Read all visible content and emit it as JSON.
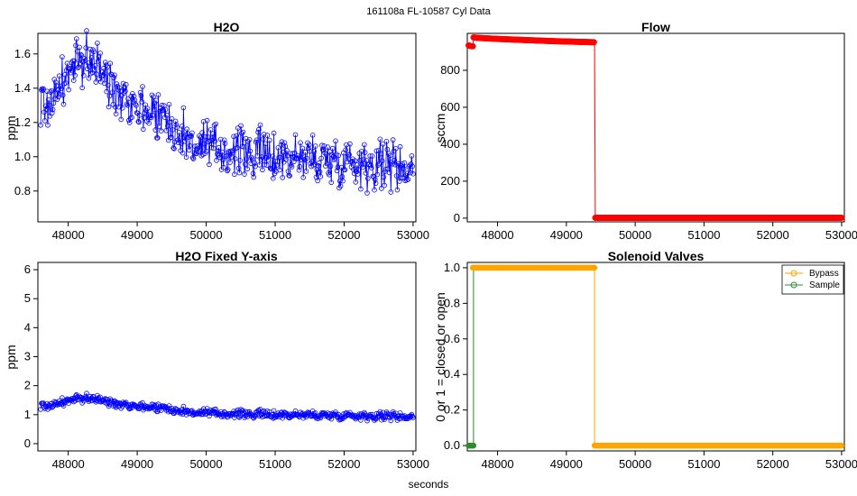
{
  "figure": {
    "suptitle": "161108a   FL-10587  Cyl Data",
    "xlabel": "seconds"
  },
  "colors": {
    "h2o": "#0000ff",
    "flow": "#ff0000",
    "bypass": "#ffa500",
    "sample": "#2e8b2e"
  },
  "chart_data": [
    {
      "type": "line",
      "title": "H2O",
      "ylabel": "ppm",
      "xlim": [
        47560,
        53040
      ],
      "ylim": [
        0.62,
        1.72
      ],
      "xticks": [
        48000,
        49000,
        50000,
        51000,
        52000,
        53000
      ],
      "yticks": [
        0.8,
        1.0,
        1.2,
        1.4,
        1.6
      ],
      "ytick_labels": [
        "0.8",
        "1.0",
        "1.2",
        "1.4",
        "1.6"
      ],
      "marker": "open-circle",
      "series": [
        {
          "x": [
            47600,
            47700,
            47800,
            47900,
            48000,
            48100,
            48200,
            48300,
            48400,
            48500,
            48600,
            48700,
            48800,
            48900,
            49000,
            49100,
            49200,
            49300,
            49400,
            49500,
            49600,
            49700,
            49800,
            49900,
            50000,
            50200,
            50400,
            50600,
            50800,
            51000,
            51200,
            51400,
            51600,
            51800,
            52000,
            52200,
            52400,
            52600,
            52800,
            53000
          ],
          "y": [
            1.32,
            1.3,
            1.36,
            1.42,
            1.48,
            1.52,
            1.56,
            1.58,
            1.54,
            1.48,
            1.42,
            1.4,
            1.38,
            1.34,
            1.3,
            1.28,
            1.27,
            1.26,
            1.23,
            1.18,
            1.14,
            1.1,
            1.08,
            1.06,
            1.05,
            1.04,
            1.03,
            1.02,
            1.01,
            1.0,
            1.0,
            0.99,
            0.99,
            0.98,
            0.98,
            0.97,
            0.96,
            0.96,
            0.95,
            0.93
          ],
          "noise": 0.09
        }
      ]
    },
    {
      "type": "line",
      "title": "Flow",
      "ylabel": "sccm",
      "xlim": [
        47560,
        53040
      ],
      "ylim": [
        -20,
        1000
      ],
      "xticks": [
        48000,
        49000,
        50000,
        51000,
        52000,
        53000
      ],
      "yticks": [
        0,
        200,
        400,
        600,
        800
      ],
      "ytick_labels": [
        "0",
        "200",
        "400",
        "600",
        "800"
      ],
      "marker": "filled-circle",
      "series": [
        {
          "segments": [
            {
              "x": [
                47580,
                47600,
                47640
              ],
              "y": [
                935,
                932,
                930
              ]
            },
            {
              "x": [
                47650,
                47700,
                48000,
                48400,
                48800,
                49200,
                49400
              ],
              "y": [
                978,
                976,
                970,
                964,
                958,
                954,
                952
              ]
            },
            {
              "x": [
                49410,
                49420,
                53000
              ],
              "y": [
                950,
                2,
                2
              ]
            }
          ]
        }
      ]
    },
    {
      "type": "line",
      "title": "H2O Fixed Y-axis",
      "ylabel": "ppm",
      "xlim": [
        47560,
        53040
      ],
      "ylim": [
        -0.25,
        6.25
      ],
      "xticks": [
        48000,
        49000,
        50000,
        51000,
        52000,
        53000
      ],
      "yticks": [
        0,
        1,
        2,
        3,
        4,
        5,
        6
      ],
      "ytick_labels": [
        "0",
        "1",
        "2",
        "3",
        "4",
        "5",
        "6"
      ],
      "marker": "open-circle",
      "series": [
        {
          "x": [
            47600,
            47700,
            47800,
            47900,
            48000,
            48100,
            48200,
            48300,
            48400,
            48500,
            48600,
            48700,
            48800,
            48900,
            49000,
            49100,
            49200,
            49300,
            49400,
            49500,
            49600,
            49700,
            49800,
            49900,
            50000,
            50200,
            50400,
            50600,
            50800,
            51000,
            51200,
            51400,
            51600,
            51800,
            52000,
            52200,
            52400,
            52600,
            52800,
            53000
          ],
          "y": [
            1.32,
            1.3,
            1.36,
            1.42,
            1.48,
            1.52,
            1.56,
            1.58,
            1.54,
            1.48,
            1.42,
            1.4,
            1.38,
            1.34,
            1.3,
            1.28,
            1.27,
            1.26,
            1.23,
            1.18,
            1.14,
            1.1,
            1.08,
            1.06,
            1.05,
            1.04,
            1.03,
            1.02,
            1.01,
            1.0,
            1.0,
            0.99,
            0.99,
            0.98,
            0.98,
            0.97,
            0.96,
            0.96,
            0.95,
            0.93
          ],
          "noise": 0.09
        }
      ]
    },
    {
      "type": "line",
      "title": "Solenoid Valves",
      "ylabel": "0 or 1 = closed or open",
      "xlim": [
        47560,
        53040
      ],
      "ylim": [
        -0.03,
        1.03
      ],
      "xticks": [
        48000,
        49000,
        50000,
        51000,
        52000,
        53000
      ],
      "yticks": [
        0,
        0.2,
        0.4,
        0.6,
        0.8,
        1.0
      ],
      "ytick_labels": [
        "0.0",
        "0.2",
        "0.4",
        "0.6",
        "0.8",
        "1.0"
      ],
      "marker": "filled-circle",
      "legend": {
        "position": "top-right",
        "entries": [
          "Bypass",
          "Sample"
        ]
      },
      "series": [
        {
          "name": "Sample",
          "x": [
            47580,
            47650,
            47650,
            47650
          ],
          "y": [
            0,
            0,
            1,
            0
          ]
        },
        {
          "name": "Bypass",
          "x": [
            47640,
            49410,
            49410,
            53000
          ],
          "y": [
            1,
            1,
            0,
            0
          ]
        }
      ]
    }
  ]
}
